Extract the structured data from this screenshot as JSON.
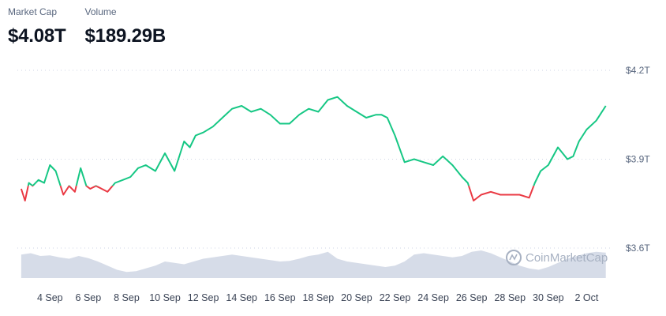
{
  "stats": {
    "market_cap": {
      "label": "Market Cap",
      "value": "$4.08T"
    },
    "volume": {
      "label": "Volume",
      "value": "$189.29B"
    }
  },
  "watermark": {
    "text": "CoinMarketCap",
    "icon": "coinmarketcap-logo-icon"
  },
  "colors": {
    "up": "#16c784",
    "down": "#ea3943",
    "volume_fill": "#cfd6e4",
    "grid": "#cfd6e4",
    "text": "#58667e"
  },
  "chart_data": {
    "type": "line",
    "title": "",
    "xlabel": "",
    "ylabel": "",
    "baseline": 3.81,
    "x_ticks": [
      "4 Sep",
      "6 Sep",
      "8 Sep",
      "10 Sep",
      "12 Sep",
      "14 Sep",
      "16 Sep",
      "18 Sep",
      "20 Sep",
      "22 Sep",
      "24 Sep",
      "26 Sep",
      "28 Sep",
      "30 Sep",
      "2 Oct"
    ],
    "y_ticks": [
      "$3.6T",
      "$3.9T",
      "$4.2T"
    ],
    "y_tick_values": [
      3.6,
      3.9,
      4.2
    ],
    "ylim": [
      3.6,
      4.2
    ],
    "xlim": [
      2.3,
      33.3
    ],
    "grid": true,
    "series": [
      {
        "unit": "T USD",
        "x": [
          2.5,
          2.7,
          2.9,
          3.1,
          3.4,
          3.7,
          4.0,
          4.3,
          4.7,
          5.0,
          5.3,
          5.6,
          5.9,
          6.1,
          6.4,
          6.7,
          7.0,
          7.4,
          7.8,
          8.2,
          8.6,
          9.0,
          9.5,
          10.0,
          10.5,
          11.0,
          11.3,
          11.6,
          12.0,
          12.5,
          13.0,
          13.5,
          14.0,
          14.5,
          15.0,
          15.5,
          16.0,
          16.5,
          17.0,
          17.5,
          18.0,
          18.5,
          19.0,
          19.5,
          20.0,
          20.5,
          21.0,
          21.3,
          21.6,
          22.0,
          22.5,
          23.0,
          23.5,
          24.0,
          24.5,
          25.0,
          25.5,
          25.8,
          26.1,
          26.5,
          27.0,
          27.5,
          28.0,
          28.5,
          29.0,
          29.3,
          29.6,
          30.0,
          30.5,
          31.0,
          31.3,
          31.6,
          32.0,
          32.5,
          33.0
        ],
        "values": [
          3.8,
          3.76,
          3.82,
          3.81,
          3.83,
          3.82,
          3.88,
          3.86,
          3.78,
          3.81,
          3.79,
          3.87,
          3.81,
          3.8,
          3.81,
          3.8,
          3.79,
          3.82,
          3.83,
          3.84,
          3.87,
          3.88,
          3.86,
          3.92,
          3.86,
          3.96,
          3.94,
          3.98,
          3.99,
          4.01,
          4.04,
          4.07,
          4.08,
          4.06,
          4.07,
          4.05,
          4.02,
          4.02,
          4.05,
          4.07,
          4.06,
          4.1,
          4.11,
          4.08,
          4.06,
          4.04,
          4.05,
          4.05,
          4.04,
          3.98,
          3.89,
          3.9,
          3.89,
          3.88,
          3.91,
          3.88,
          3.84,
          3.82,
          3.76,
          3.78,
          3.79,
          3.78,
          3.78,
          3.78,
          3.77,
          3.82,
          3.86,
          3.88,
          3.94,
          3.9,
          3.91,
          3.96,
          4.0,
          4.03,
          4.08
        ]
      }
    ],
    "volume_series": {
      "x": [
        2.5,
        3.0,
        3.5,
        4.0,
        4.5,
        5.0,
        5.5,
        6.0,
        6.5,
        7.0,
        7.5,
        8.0,
        8.5,
        9.0,
        9.5,
        10.0,
        10.5,
        11.0,
        11.5,
        12.0,
        12.5,
        13.0,
        13.5,
        14.0,
        14.5,
        15.0,
        15.5,
        16.0,
        16.5,
        17.0,
        17.5,
        18.0,
        18.5,
        19.0,
        19.5,
        20.0,
        20.5,
        21.0,
        21.5,
        22.0,
        22.5,
        23.0,
        23.5,
        24.0,
        24.5,
        25.0,
        25.5,
        26.0,
        26.5,
        27.0,
        27.5,
        28.0,
        28.5,
        29.0,
        29.5,
        30.0,
        30.5,
        31.0,
        31.5,
        32.0,
        32.5,
        33.0
      ],
      "values": [
        0.85,
        0.9,
        0.8,
        0.82,
        0.75,
        0.7,
        0.8,
        0.72,
        0.6,
        0.45,
        0.3,
        0.22,
        0.25,
        0.35,
        0.45,
        0.6,
        0.55,
        0.5,
        0.6,
        0.7,
        0.75,
        0.8,
        0.85,
        0.8,
        0.75,
        0.7,
        0.65,
        0.6,
        0.62,
        0.7,
        0.8,
        0.85,
        0.95,
        0.7,
        0.6,
        0.55,
        0.5,
        0.45,
        0.4,
        0.45,
        0.6,
        0.85,
        0.9,
        0.85,
        0.8,
        0.75,
        0.8,
        0.95,
        1.0,
        0.9,
        0.75,
        0.6,
        0.45,
        0.35,
        0.3,
        0.4,
        0.55,
        0.7,
        0.8,
        0.9,
        0.95,
        0.92
      ]
    }
  }
}
